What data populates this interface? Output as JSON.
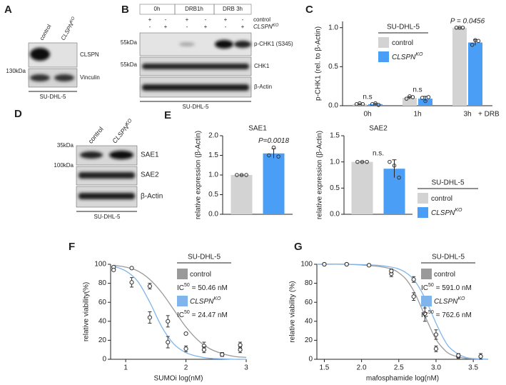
{
  "figure": {
    "letters": [
      "A",
      "B",
      "C",
      "D",
      "E",
      "F",
      "G"
    ],
    "A": {
      "col_control": "control",
      "col_ko": "CLSPN",
      "col_ko_sup": "KO",
      "marker": "130kDa",
      "bands": [
        "CLSPN",
        "Vinculin"
      ],
      "cell_line": "SU-DHL-5"
    },
    "B": {
      "timepoints": [
        "0h",
        "DRB1h",
        "DRB 3h"
      ],
      "rows": [
        {
          "label": "control",
          "signs": [
            "+",
            "-",
            "+",
            "-",
            "+",
            "-"
          ]
        },
        {
          "label": "CLSPN",
          "sup": "KO",
          "signs": [
            "-",
            "+",
            "-",
            "+",
            "-",
            "+"
          ]
        }
      ],
      "markers": [
        "55kDa",
        "55kDa"
      ],
      "bands": [
        "p-CHK1 (S345)",
        "CHK1",
        "β-Actin"
      ],
      "cell_line": "SU-DHL-5"
    },
    "D": {
      "col_control": "control",
      "col_ko": "CLSPN",
      "col_ko_sup": "KO",
      "markers": [
        "35kDa",
        "100kDa"
      ],
      "bands": [
        "SAE1",
        "SAE2",
        "β-Actin"
      ],
      "cell_line": "SU-DHL-5"
    }
  },
  "chart_data": [
    {
      "type": "bar",
      "ylabel": "p-CHK1 (rel. to β-Actin)",
      "categories": [
        "0h",
        "1h",
        "3h"
      ],
      "x_suffix": "+ DRB",
      "bar_annotations": [
        "n.s",
        "n.s",
        "P = 0.0456"
      ],
      "legend_title": "SU-DHL-5",
      "ylim": [
        0,
        1.08
      ],
      "yticks": [
        {
          "value": 0,
          "label": "0.0"
        },
        {
          "value": 0.5,
          "label": "0.5"
        },
        {
          "value": 1,
          "label": "1.0"
        }
      ],
      "series": [
        {
          "name": "control",
          "color": "#d3d3d3",
          "values": [
            0.02,
            0.1,
            1.0
          ],
          "errors": [
            0.005,
            0.015,
            0
          ],
          "points": [
            [
              0.02,
              0.03,
              0.02
            ],
            [
              0.09,
              0.12,
              0.11
            ],
            [
              1.0,
              1.0,
              1.0
            ]
          ]
        },
        {
          "name": "CLSPN",
          "sup": "KO",
          "color": "#4a9ef5",
          "values": [
            0.02,
            0.09,
            0.81
          ],
          "errors": [
            0.01,
            0.03,
            0.035
          ],
          "points": [
            [
              0.02,
              0.03,
              0.01
            ],
            [
              0.1,
              0.06,
              0.11
            ],
            [
              0.78,
              0.84,
              0.83
            ]
          ]
        }
      ]
    },
    {
      "type": "bar",
      "title": "SAE1",
      "ylabel": "relative expression (β-Actin)",
      "categories": [
        null
      ],
      "bar_annotations": [
        "P=0.0018"
      ],
      "ylim": [
        0,
        2
      ],
      "yticks": [
        {
          "value": 0,
          "label": "0.0"
        },
        {
          "value": 0.5,
          "label": "0.5"
        },
        {
          "value": 1,
          "label": "1.0"
        },
        {
          "value": 1.5,
          "label": "1.5"
        },
        {
          "value": 2,
          "label": "2.0"
        }
      ],
      "series": [
        {
          "color": "#d3d3d3",
          "values": [
            1.0
          ],
          "errors": [
            0
          ],
          "points": [
            [
              1.0,
              1.0,
              1.0
            ]
          ]
        },
        {
          "color": "#4a9ef5",
          "values": [
            1.55
          ],
          "errors": [
            0.12
          ],
          "points": [
            [
              1.5,
              1.7,
              1.47
            ]
          ]
        }
      ]
    },
    {
      "type": "bar",
      "title": "SAE2",
      "ylabel": "relative expression (β-Actin)",
      "categories": [
        null
      ],
      "bar_annotations": [
        "n.s."
      ],
      "legend_title": "SU-DHL-5",
      "ylim": [
        0,
        1.5
      ],
      "yticks": [
        {
          "value": 0,
          "label": "0.0"
        },
        {
          "value": 0.5,
          "label": "0.5"
        },
        {
          "value": 1,
          "label": "1.0"
        },
        {
          "value": 1.5,
          "label": "1.5"
        }
      ],
      "series": [
        {
          "name": "control",
          "color": "#d3d3d3",
          "values": [
            1.0
          ],
          "errors": [
            0
          ],
          "points": [
            [
              1.0,
              1.0,
              1.0
            ]
          ]
        },
        {
          "name": "CLSPN",
          "sup": "KO",
          "color": "#4a9ef5",
          "values": [
            0.87
          ],
          "errors": [
            0.17
          ],
          "points": [
            [
              1.0,
              0.93,
              0.7
            ]
          ]
        }
      ]
    },
    {
      "type": "scatter",
      "xlabel": "SUMOi log(nM)",
      "ylabel": "relative viability(%)",
      "legend_title": "SU-DHL-5",
      "x": [
        0.8,
        1.1,
        1.4,
        1.7,
        2.0,
        2.3,
        2.6,
        2.9
      ],
      "fit_x": [
        0.8,
        1.0,
        1.2,
        1.4,
        1.6,
        1.8,
        2.0,
        2.2,
        2.4,
        2.6,
        2.8,
        3.0
      ],
      "xlim": [
        0.75,
        3
      ],
      "xticks": [
        1,
        2,
        3
      ],
      "ylim": [
        0,
        100
      ],
      "yticks": [
        0,
        20,
        40,
        60,
        80,
        100
      ],
      "series": [
        {
          "name": "control",
          "color": "#9a9a9a",
          "values": [
            97,
            96,
            77,
            40,
            27,
            14,
            5,
            15
          ],
          "errors": [
            1,
            1,
            3,
            6,
            1,
            4,
            2,
            3
          ],
          "fit": [
            99,
            97,
            93,
            84,
            70,
            52,
            34,
            20,
            11,
            6,
            3,
            2
          ],
          "ic50": {
            "text": "IC",
            "sup": "50",
            "rest": " = 50.46 nM"
          }
        },
        {
          "name": "CLSPN",
          "sup": "KO",
          "color": "#7fb5ec",
          "values": [
            94,
            81,
            44,
            18,
            11,
            10,
            5,
            10
          ],
          "errors": [
            1,
            5,
            6,
            6,
            3,
            3,
            2,
            3
          ],
          "fit": [
            98,
            93,
            82,
            60,
            34,
            16,
            7,
            3,
            1,
            0.5,
            0,
            0
          ],
          "ic50": {
            "text": "IC",
            "sup": "50",
            "rest": " = 24.47 nM"
          }
        }
      ]
    },
    {
      "type": "scatter",
      "xlabel": "mafosphamide log(nM)",
      "ylabel": "relative viability (%)",
      "legend_title": "SU-DHL-5",
      "x": [
        1.5,
        1.8,
        2.1,
        2.4,
        2.7,
        2.85,
        3.0,
        3.3,
        3.6
      ],
      "fit_x": [
        1.4,
        1.8,
        2.2,
        2.4,
        2.5,
        2.6,
        2.7,
        2.8,
        2.9,
        3.0,
        3.1,
        3.2,
        3.4,
        3.7
      ],
      "xlim": [
        1.4,
        3.7
      ],
      "xticks": [
        {
          "value": 1.5,
          "label": "1.5"
        },
        {
          "value": 2,
          "label": "2.0"
        },
        {
          "value": 2.5,
          "label": "2.5"
        },
        {
          "value": 3,
          "label": "3.0"
        },
        {
          "value": 3.5,
          "label": "3.5"
        }
      ],
      "ylim": [
        0,
        100
      ],
      "yticks": [
        0,
        20,
        40,
        60,
        80,
        100
      ],
      "series": [
        {
          "name": "control",
          "color": "#9a9a9a",
          "values": [
            100,
            100,
            99,
            90,
            66,
            48,
            11,
            3,
            3
          ],
          "errors": [
            1,
            1,
            1,
            3,
            4,
            8,
            3,
            2,
            3
          ],
          "fit": [
            100,
            100,
            98,
            95,
            91,
            84,
            72,
            55,
            37,
            21,
            11,
            5,
            1,
            0
          ],
          "ic50": {
            "text": "IC",
            "sup": "50",
            "rest": " = 591.0 nM"
          }
        },
        {
          "name": "CLSPN",
          "sup": "KO",
          "color": "#7fb5ec",
          "values": [
            100,
            100,
            99,
            93,
            84,
            60,
            26,
            4,
            3
          ],
          "errors": [
            1,
            1,
            1,
            2,
            3,
            6,
            5,
            2,
            3
          ],
          "fit": [
            100,
            100,
            99,
            97,
            95,
            91,
            84,
            72,
            56,
            38,
            22,
            11,
            2,
            0
          ],
          "ic50": {
            "text": "IC",
            "sup": "50",
            "rest": " = 762.6 nM"
          }
        }
      ]
    }
  ]
}
